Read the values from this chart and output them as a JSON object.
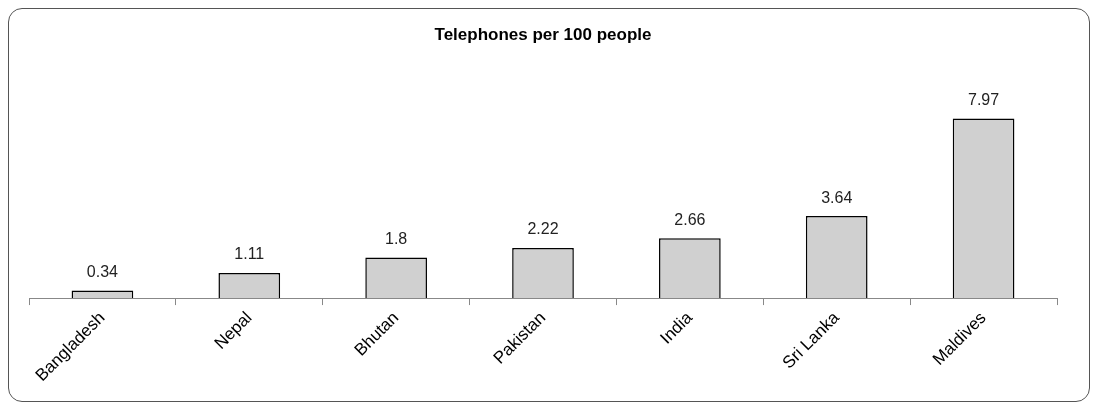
{
  "chart_data": {
    "type": "bar",
    "title": "Telephones per 100 people",
    "categories": [
      "Bangladesh",
      "Nepal",
      "Bhutan",
      "Pakistan",
      "India",
      "Sri Lanka",
      "Maldives"
    ],
    "values": [
      0.34,
      1.11,
      1.8,
      2.22,
      2.66,
      3.64,
      7.97
    ],
    "color": "#d0d0d0",
    "data_labels": true,
    "grid": false,
    "legend": false
  }
}
